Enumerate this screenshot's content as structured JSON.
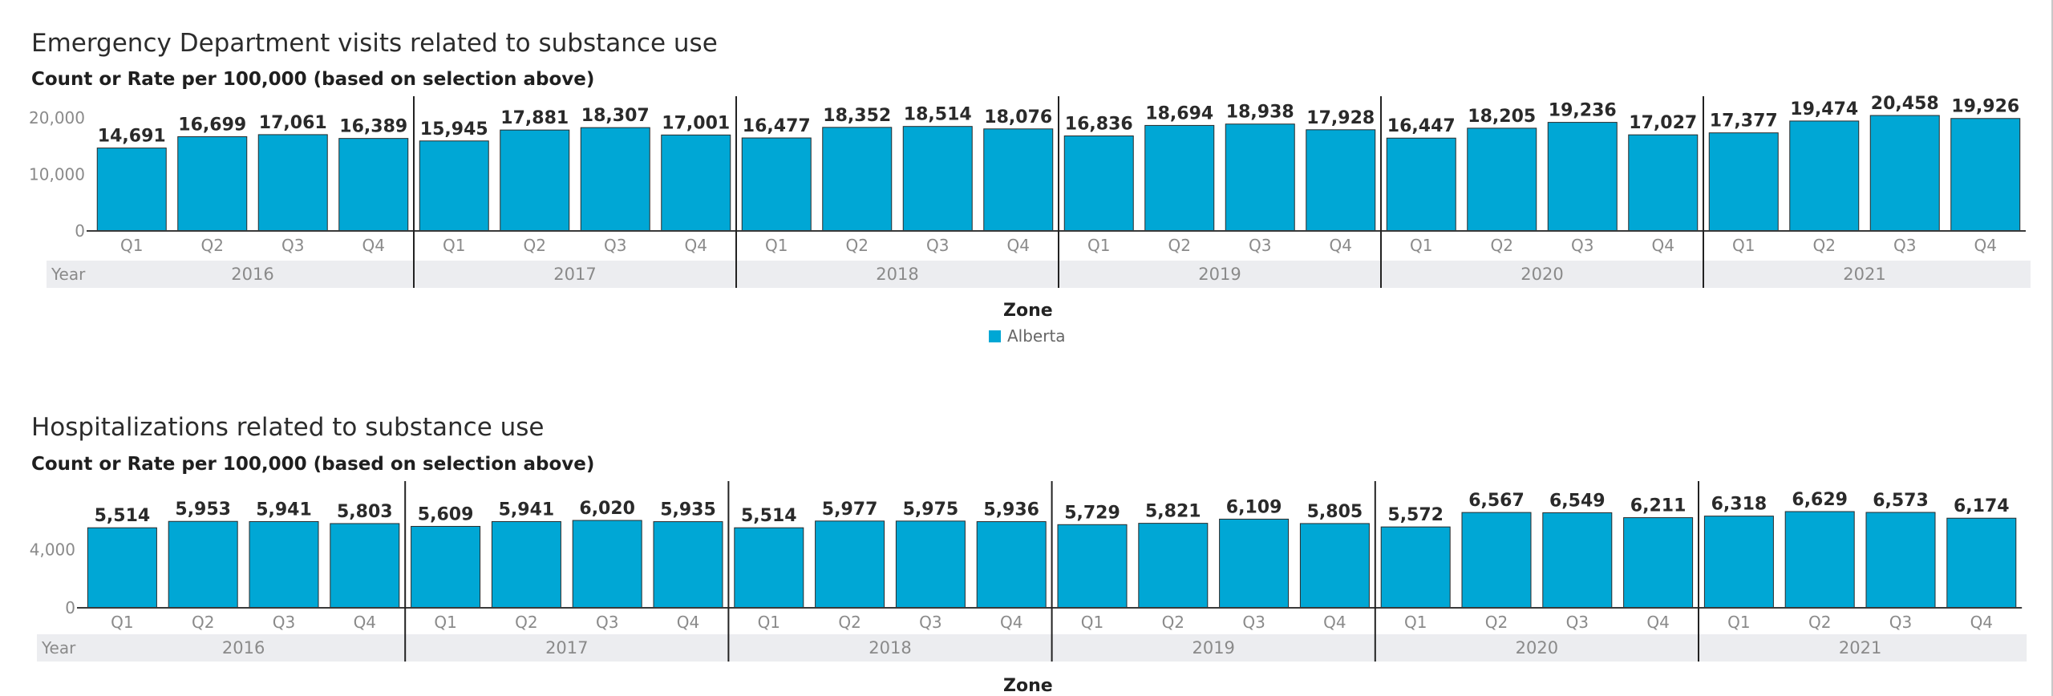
{
  "colors": {
    "bar": "#00a7d5",
    "bar_stroke": "#2a2a2a",
    "band": "#ecedf0",
    "axis": "#3a3a3a",
    "tick_text": "#8a8a8a",
    "divider": "#222222"
  },
  "legend": {
    "title": "Zone",
    "entries": [
      "Alberta"
    ]
  },
  "chart_data": [
    {
      "type": "bar",
      "title": "Emergency Department visits related to substance use",
      "subtitle": "Count or Rate per 100,000 (based on selection above)",
      "band_label": "Year",
      "years": [
        "2016",
        "2017",
        "2018",
        "2019",
        "2020",
        "2021"
      ],
      "quarters": [
        "Q1",
        "Q2",
        "Q3",
        "Q4"
      ],
      "series": [
        {
          "name": "Alberta",
          "values": [
            14691,
            16699,
            17061,
            16389,
            15945,
            17881,
            18307,
            17001,
            16477,
            18352,
            18514,
            18076,
            16836,
            18694,
            18938,
            17928,
            16447,
            18205,
            19236,
            17027,
            17377,
            19474,
            20458,
            19926
          ]
        }
      ],
      "value_labels": [
        "14,691",
        "16,699",
        "17,061",
        "16,389",
        "15,945",
        "17,881",
        "18,307",
        "17,001",
        "16,477",
        "18,352",
        "18,514",
        "18,076",
        "16,836",
        "18,694",
        "18,938",
        "17,928",
        "16,447",
        "18,205",
        "19,236",
        "17,027",
        "17,377",
        "19,474",
        "20,458",
        "19,926"
      ],
      "yticks": [
        0,
        10000,
        20000
      ],
      "ytick_labels": [
        "0",
        "10,000",
        "20,000"
      ],
      "ylim": [
        0,
        20458
      ]
    },
    {
      "type": "bar",
      "title": "Hospitalizations related to substance use",
      "subtitle": "Count or Rate per 100,000 (based on selection above)",
      "band_label": "Year",
      "years": [
        "2016",
        "2017",
        "2018",
        "2019",
        "2020",
        "2021"
      ],
      "quarters": [
        "Q1",
        "Q2",
        "Q3",
        "Q4"
      ],
      "series": [
        {
          "name": "Alberta",
          "values": [
            5514,
            5953,
            5941,
            5803,
            5609,
            5941,
            6020,
            5935,
            5514,
            5977,
            5975,
            5936,
            5729,
            5821,
            6109,
            5805,
            5572,
            6567,
            6549,
            6211,
            6318,
            6629,
            6573,
            6174
          ]
        }
      ],
      "value_labels": [
        "5,514",
        "5,953",
        "5,941",
        "5,803",
        "5,609",
        "5,941",
        "6,020",
        "5,935",
        "5,514",
        "5,977",
        "5,975",
        "5,936",
        "5,729",
        "5,821",
        "6,109",
        "5,805",
        "5,572",
        "6,567",
        "6,549",
        "6,211",
        "6,318",
        "6,629",
        "6,573",
        "6,174"
      ],
      "yticks": [
        0,
        4000
      ],
      "ytick_labels": [
        "0",
        "4,000"
      ],
      "ylim": [
        0,
        6629
      ]
    }
  ],
  "bottom_legend": {
    "title": "Zone"
  }
}
